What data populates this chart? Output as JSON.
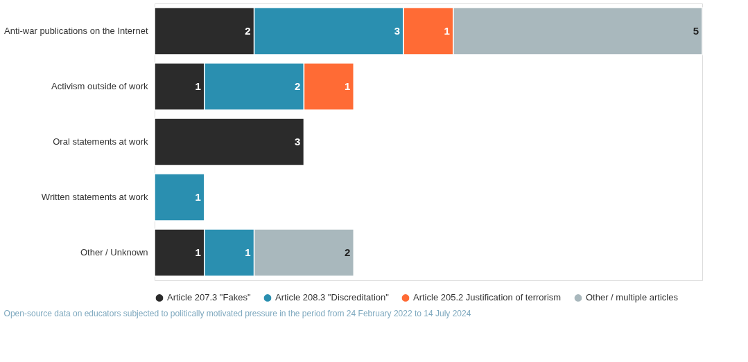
{
  "chart_data": {
    "type": "bar",
    "orientation": "horizontal",
    "stacked": true,
    "data_labels": true,
    "legend": "bottom",
    "tick_labels": "y",
    "xlim": [
      0,
      11
    ],
    "categories": [
      "Anti-war publications on the Internet",
      "Activism outside of work",
      "Oral statements at work",
      "Written statements at work",
      "Other / Unknown"
    ],
    "series": [
      {
        "name": "Article 207.3 \"Fakes\"",
        "color": "#2b2b2b",
        "values": [
          2,
          1,
          3,
          null,
          1
        ]
      },
      {
        "name": "Article 208.3 \"Discreditation\"",
        "color": "#2a8fb0",
        "values": [
          3,
          2,
          null,
          1,
          1
        ]
      },
      {
        "name": "Article 205.2 Justification of terrorism",
        "color": "#ff6b35",
        "values": [
          1,
          1,
          null,
          null,
          null
        ]
      },
      {
        "name": "Other / multiple articles",
        "color": "#a9b8bd",
        "values": [
          5,
          null,
          null,
          null,
          2
        ]
      }
    ],
    "annotations": [
      "Open-source data on educators subjected to politically motivated pressure in the period from 24 February 2022 to 14 July 2024"
    ]
  }
}
